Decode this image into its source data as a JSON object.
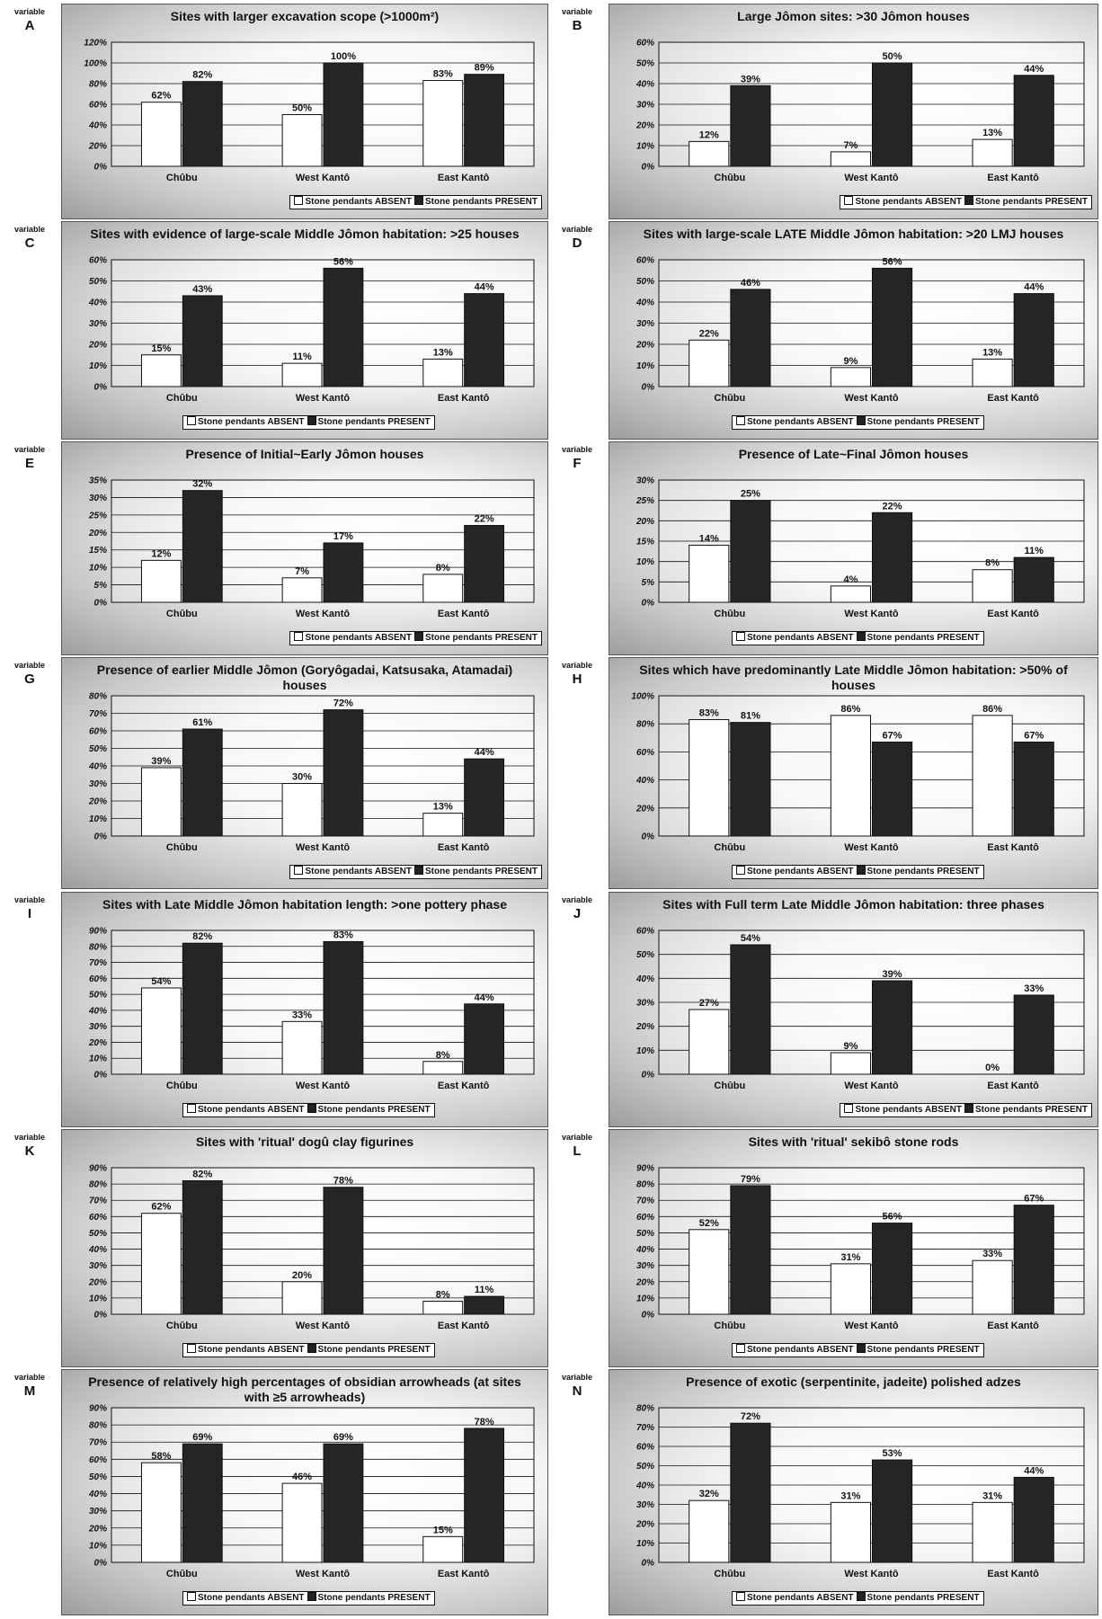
{
  "variable_word": "variable",
  "legend": {
    "absent": "Stone pendants ABSENT",
    "present": "Stone pendants PRESENT"
  },
  "colors": {
    "absent": "#ffffff",
    "present": "#252525",
    "outline": "#111111",
    "grid": "#111111"
  },
  "chart_data": [
    {
      "id": "A",
      "type": "bar",
      "title": "Sites with larger excavation scope (>1000m²)",
      "categories": [
        "Chûbu",
        "West Kantô",
        "East Kantô"
      ],
      "series": [
        {
          "name": "Stone pendants ABSENT",
          "values": [
            62,
            50,
            83
          ],
          "labels": [
            "62%",
            "50%",
            "83%"
          ]
        },
        {
          "name": "Stone pendants PRESENT",
          "values": [
            82,
            100,
            89
          ],
          "labels": [
            "82%",
            "100%",
            "89%"
          ]
        }
      ],
      "ylim": [
        0,
        120
      ],
      "yticks": [
        0,
        20,
        40,
        60,
        80,
        100,
        120
      ],
      "tick_labels": [
        "0%",
        "20%",
        "40%",
        "60%",
        "80%",
        "100%",
        "120%"
      ],
      "legend_position": "bottom-right",
      "grid": true
    },
    {
      "id": "B",
      "type": "bar",
      "title": "Large Jômon sites: >30 Jômon houses",
      "categories": [
        "Chûbu",
        "West Kantô",
        "East Kantô"
      ],
      "series": [
        {
          "name": "Stone pendants ABSENT",
          "values": [
            12,
            7,
            13
          ],
          "labels": [
            "12%",
            "7%",
            "13%"
          ]
        },
        {
          "name": "Stone pendants PRESENT",
          "values": [
            39,
            50,
            44
          ],
          "labels": [
            "39%",
            "50%",
            "44%"
          ]
        }
      ],
      "ylim": [
        0,
        60
      ],
      "yticks": [
        0,
        10,
        20,
        30,
        40,
        50,
        60
      ],
      "tick_labels": [
        "0%",
        "10%",
        "20%",
        "30%",
        "40%",
        "50%",
        "60%"
      ],
      "legend_position": "bottom-right",
      "grid": true
    },
    {
      "id": "C",
      "type": "bar",
      "title": "Sites with evidence of large-scale Middle Jômon habitation: >25 houses",
      "categories": [
        "Chûbu",
        "West Kantô",
        "East Kantô"
      ],
      "series": [
        {
          "name": "Stone pendants ABSENT",
          "values": [
            15,
            11,
            13
          ],
          "labels": [
            "15%",
            "11%",
            "13%"
          ]
        },
        {
          "name": "Stone pendants PRESENT",
          "values": [
            43,
            56,
            44
          ],
          "labels": [
            "43%",
            "56%",
            "44%"
          ]
        }
      ],
      "ylim": [
        0,
        60
      ],
      "yticks": [
        0,
        10,
        20,
        30,
        40,
        50,
        60
      ],
      "tick_labels": [
        "0%",
        "10%",
        "20%",
        "30%",
        "40%",
        "50%",
        "60%"
      ],
      "legend_position": "bottom",
      "grid": true
    },
    {
      "id": "D",
      "type": "bar",
      "title": "Sites with large-scale LATE Middle Jômon habitation: >20 LMJ houses",
      "categories": [
        "Chûbu",
        "West Kantô",
        "East Kantô"
      ],
      "series": [
        {
          "name": "Stone pendants ABSENT",
          "values": [
            22,
            9,
            13
          ],
          "labels": [
            "22%",
            "9%",
            "13%"
          ]
        },
        {
          "name": "Stone pendants PRESENT",
          "values": [
            46,
            56,
            44
          ],
          "labels": [
            "46%",
            "56%",
            "44%"
          ]
        }
      ],
      "ylim": [
        0,
        60
      ],
      "yticks": [
        0,
        10,
        20,
        30,
        40,
        50,
        60
      ],
      "tick_labels": [
        "0%",
        "10%",
        "20%",
        "30%",
        "40%",
        "50%",
        "60%"
      ],
      "legend_position": "bottom",
      "grid": true
    },
    {
      "id": "E",
      "type": "bar",
      "title": "Presence of Initial~Early Jômon houses",
      "categories": [
        "Chûbu",
        "West Kantô",
        "East Kantô"
      ],
      "series": [
        {
          "name": "Stone pendants ABSENT",
          "values": [
            12,
            7,
            8
          ],
          "labels": [
            "12%",
            "7%",
            "8%"
          ]
        },
        {
          "name": "Stone pendants PRESENT",
          "values": [
            32,
            17,
            22
          ],
          "labels": [
            "32%",
            "17%",
            "22%"
          ]
        }
      ],
      "ylim": [
        0,
        35
      ],
      "yticks": [
        0,
        5,
        10,
        15,
        20,
        25,
        30,
        35
      ],
      "tick_labels": [
        "0%",
        "5%",
        "10%",
        "15%",
        "20%",
        "25%",
        "30%",
        "35%"
      ],
      "legend_position": "bottom-right",
      "grid": true
    },
    {
      "id": "F",
      "type": "bar",
      "title": "Presence of Late~Final Jômon houses",
      "categories": [
        "Chûbu",
        "West Kantô",
        "East Kantô"
      ],
      "series": [
        {
          "name": "Stone pendants ABSENT",
          "values": [
            14,
            4,
            8
          ],
          "labels": [
            "14%",
            "4%",
            "8%"
          ]
        },
        {
          "name": "Stone pendants PRESENT",
          "values": [
            25,
            22,
            11
          ],
          "labels": [
            "25%",
            "22%",
            "11%"
          ]
        }
      ],
      "ylim": [
        0,
        30
      ],
      "yticks": [
        0,
        5,
        10,
        15,
        20,
        25,
        30
      ],
      "tick_labels": [
        "0%",
        "5%",
        "10%",
        "15%",
        "20%",
        "25%",
        "30%"
      ],
      "legend_position": "bottom",
      "grid": true
    },
    {
      "id": "G",
      "type": "bar",
      "title": "Presence of earlier Middle Jômon (Goryôgadai, Katsusaka, Atamadai) houses",
      "categories": [
        "Chûbu",
        "West Kantô",
        "East Kantô"
      ],
      "series": [
        {
          "name": "Stone pendants ABSENT",
          "values": [
            39,
            30,
            13
          ],
          "labels": [
            "39%",
            "30%",
            "13%"
          ]
        },
        {
          "name": "Stone pendants PRESENT",
          "values": [
            61,
            72,
            44
          ],
          "labels": [
            "61%",
            "72%",
            "44%"
          ]
        }
      ],
      "ylim": [
        0,
        80
      ],
      "yticks": [
        0,
        10,
        20,
        30,
        40,
        50,
        60,
        70,
        80
      ],
      "tick_labels": [
        "0%",
        "10%",
        "20%",
        "30%",
        "40%",
        "50%",
        "60%",
        "70%",
        "80%"
      ],
      "legend_position": "bottom-right",
      "grid": true
    },
    {
      "id": "H",
      "type": "bar",
      "title": "Sites which have predominantly Late Middle Jômon habitation: >50% of houses",
      "categories": [
        "Chûbu",
        "West Kantô",
        "East Kantô"
      ],
      "series": [
        {
          "name": "Stone pendants ABSENT",
          "values": [
            83,
            86,
            86
          ],
          "labels": [
            "83%",
            "86%",
            "86%"
          ]
        },
        {
          "name": "Stone pendants PRESENT",
          "values": [
            81,
            67,
            67
          ],
          "labels": [
            "81%",
            "67%",
            "67%"
          ]
        }
      ],
      "ylim": [
        0,
        100
      ],
      "yticks": [
        0,
        20,
        40,
        60,
        80,
        100
      ],
      "tick_labels": [
        "0%",
        "20%",
        "40%",
        "60%",
        "80%",
        "100%"
      ],
      "legend_position": "bottom",
      "grid": true
    },
    {
      "id": "I",
      "type": "bar",
      "title": "Sites with Late Middle Jômon habitation length: >one pottery phase",
      "categories": [
        "Chûbu",
        "West Kantô",
        "East Kantô"
      ],
      "series": [
        {
          "name": "Stone pendants ABSENT",
          "values": [
            54,
            33,
            8
          ],
          "labels": [
            "54%",
            "33%",
            "8%"
          ]
        },
        {
          "name": "Stone pendants PRESENT",
          "values": [
            82,
            83,
            44
          ],
          "labels": [
            "82%",
            "83%",
            "44%"
          ]
        }
      ],
      "ylim": [
        0,
        90
      ],
      "yticks": [
        0,
        10,
        20,
        30,
        40,
        50,
        60,
        70,
        80,
        90
      ],
      "tick_labels": [
        "0%",
        "10%",
        "20%",
        "30%",
        "40%",
        "50%",
        "60%",
        "70%",
        "80%",
        "90%"
      ],
      "legend_position": "bottom",
      "grid": true
    },
    {
      "id": "J",
      "type": "bar",
      "title": "Sites with Full term Late Middle Jômon habitation: three phases",
      "categories": [
        "Chûbu",
        "West Kantô",
        "East Kantô"
      ],
      "series": [
        {
          "name": "Stone pendants ABSENT",
          "values": [
            27,
            9,
            0
          ],
          "labels": [
            "27%",
            "9%",
            "0%"
          ]
        },
        {
          "name": "Stone pendants PRESENT",
          "values": [
            54,
            39,
            33
          ],
          "labels": [
            "54%",
            "39%",
            "33%"
          ]
        }
      ],
      "ylim": [
        0,
        60
      ],
      "yticks": [
        0,
        10,
        20,
        30,
        40,
        50,
        60
      ],
      "tick_labels": [
        "0%",
        "10%",
        "20%",
        "30%",
        "40%",
        "50%",
        "60%"
      ],
      "legend_position": "bottom-right",
      "grid": true
    },
    {
      "id": "K",
      "type": "bar",
      "title": "Sites with 'ritual' dogû clay figurines",
      "categories": [
        "Chûbu",
        "West Kantô",
        "East Kantô"
      ],
      "series": [
        {
          "name": "Stone pendants ABSENT",
          "values": [
            62,
            20,
            8
          ],
          "labels": [
            "62%",
            "20%",
            "8%"
          ]
        },
        {
          "name": "Stone pendants PRESENT",
          "values": [
            82,
            78,
            11
          ],
          "labels": [
            "82%",
            "78%",
            "11%"
          ]
        }
      ],
      "ylim": [
        0,
        90
      ],
      "yticks": [
        0,
        10,
        20,
        30,
        40,
        50,
        60,
        70,
        80,
        90
      ],
      "tick_labels": [
        "0%",
        "10%",
        "20%",
        "30%",
        "40%",
        "50%",
        "60%",
        "70%",
        "80%",
        "90%"
      ],
      "legend_position": "bottom",
      "grid": true
    },
    {
      "id": "L",
      "type": "bar",
      "title": "Sites with 'ritual' sekibô stone rods",
      "categories": [
        "Chûbu",
        "West Kantô",
        "East Kantô"
      ],
      "series": [
        {
          "name": "Stone pendants ABSENT",
          "values": [
            52,
            31,
            33
          ],
          "labels": [
            "52%",
            "31%",
            "33%"
          ]
        },
        {
          "name": "Stone pendants PRESENT",
          "values": [
            79,
            56,
            67
          ],
          "labels": [
            "79%",
            "56%",
            "67%"
          ]
        }
      ],
      "ylim": [
        0,
        90
      ],
      "yticks": [
        0,
        10,
        20,
        30,
        40,
        50,
        60,
        70,
        80,
        90
      ],
      "tick_labels": [
        "0%",
        "10%",
        "20%",
        "30%",
        "40%",
        "50%",
        "60%",
        "70%",
        "80%",
        "90%"
      ],
      "legend_position": "bottom",
      "grid": true
    },
    {
      "id": "M",
      "type": "bar",
      "title": "Presence of relatively high percentages of obsidian arrowheads (at sites with ≥5 arrowheads)",
      "categories": [
        "Chûbu",
        "West Kantô",
        "East Kantô"
      ],
      "series": [
        {
          "name": "Stone pendants ABSENT",
          "values": [
            58,
            46,
            15
          ],
          "labels": [
            "58%",
            "46%",
            "15%"
          ]
        },
        {
          "name": "Stone pendants PRESENT",
          "values": [
            69,
            69,
            78
          ],
          "labels": [
            "69%",
            "69%",
            "78%"
          ]
        }
      ],
      "ylim": [
        0,
        90
      ],
      "yticks": [
        0,
        10,
        20,
        30,
        40,
        50,
        60,
        70,
        80,
        90
      ],
      "tick_labels": [
        "0%",
        "10%",
        "20%",
        "30%",
        "40%",
        "50%",
        "60%",
        "70%",
        "80%",
        "90%"
      ],
      "legend_position": "bottom",
      "grid": true
    },
    {
      "id": "N",
      "type": "bar",
      "title": "Presence of exotic (serpentinite, jadeite) polished adzes",
      "categories": [
        "Chûbu",
        "West Kantô",
        "East Kantô"
      ],
      "series": [
        {
          "name": "Stone pendants ABSENT",
          "values": [
            32,
            31,
            31
          ],
          "labels": [
            "32%",
            "31%",
            "31%"
          ]
        },
        {
          "name": "Stone pendants PRESENT",
          "values": [
            72,
            53,
            44
          ],
          "labels": [
            "72%",
            "53%",
            "44%"
          ]
        }
      ],
      "ylim": [
        0,
        80
      ],
      "yticks": [
        0,
        10,
        20,
        30,
        40,
        50,
        60,
        70,
        80
      ],
      "tick_labels": [
        "0%",
        "10%",
        "20%",
        "30%",
        "40%",
        "50%",
        "60%",
        "70%",
        "80%"
      ],
      "legend_position": "bottom",
      "grid": true
    }
  ]
}
